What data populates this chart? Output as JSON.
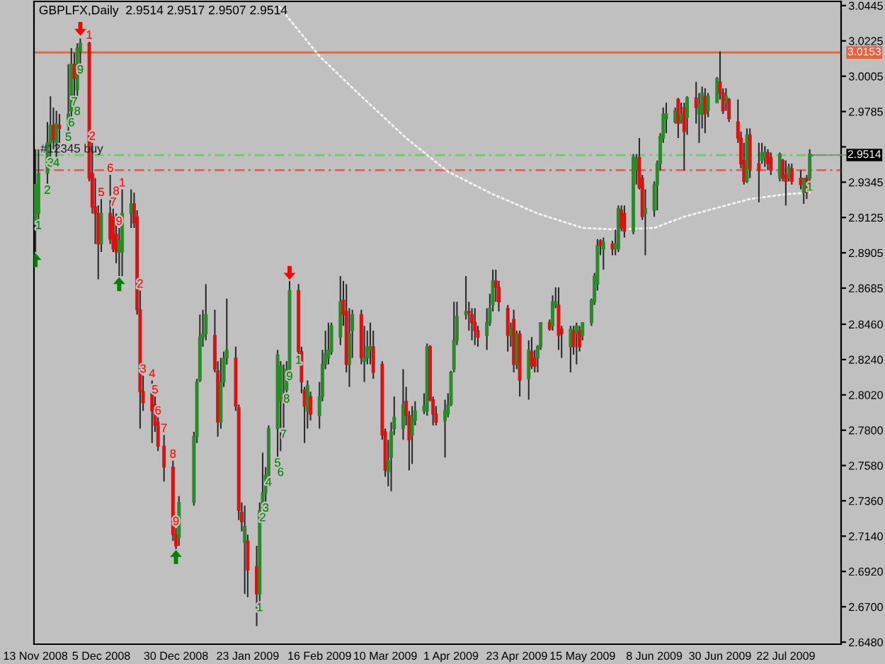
{
  "chart_data": {
    "type": "candlestick",
    "title": "GBPLFX,Daily  2.9514 2.9517 2.9507 2.9514",
    "x": [
      "2008-11-13",
      "2008-11-14",
      "2008-11-17",
      "2008-11-18",
      "2008-11-19",
      "2008-11-20",
      "2008-11-21",
      "2008-11-24",
      "2008-11-25",
      "2008-11-26",
      "2008-11-27",
      "2008-11-28",
      "2008-12-01",
      "2008-12-02",
      "2008-12-03",
      "2008-12-04",
      "2008-12-05",
      "2008-12-08",
      "2008-12-09",
      "2008-12-10",
      "2008-12-11",
      "2008-12-12",
      "2008-12-15",
      "2008-12-16",
      "2008-12-17",
      "2008-12-18",
      "2008-12-19",
      "2008-12-22",
      "2008-12-23",
      "2008-12-24",
      "2008-12-26",
      "2008-12-29",
      "2008-12-30",
      "2008-12-31",
      "2009-01-05",
      "2009-01-06",
      "2009-01-07",
      "2009-01-08",
      "2009-01-09",
      "2009-01-12",
      "2009-01-13",
      "2009-01-14",
      "2009-01-15",
      "2009-01-16",
      "2009-01-19",
      "2009-01-20",
      "2009-01-21",
      "2009-01-22",
      "2009-01-23",
      "2009-01-26",
      "2009-01-27",
      "2009-01-28",
      "2009-01-29",
      "2009-01-30",
      "2009-02-02",
      "2009-02-03",
      "2009-02-04",
      "2009-02-05",
      "2009-02-06",
      "2009-02-09",
      "2009-02-10",
      "2009-02-11",
      "2009-02-12",
      "2009-02-13",
      "2009-02-16",
      "2009-02-17",
      "2009-02-18",
      "2009-02-19",
      "2009-02-20",
      "2009-02-23",
      "2009-02-24",
      "2009-02-25",
      "2009-02-26",
      "2009-02-27",
      "2009-03-02",
      "2009-03-03",
      "2009-03-04",
      "2009-03-05",
      "2009-03-06",
      "2009-03-09",
      "2009-03-10",
      "2009-03-11",
      "2009-03-12",
      "2009-03-13",
      "2009-03-16",
      "2009-03-17",
      "2009-03-18",
      "2009-03-19",
      "2009-03-20",
      "2009-03-23",
      "2009-03-24",
      "2009-03-25",
      "2009-03-26",
      "2009-03-27",
      "2009-03-30",
      "2009-03-31",
      "2009-04-01",
      "2009-04-02",
      "2009-04-03",
      "2009-04-06",
      "2009-04-07",
      "2009-04-08",
      "2009-04-09",
      "2009-04-10",
      "2009-04-13",
      "2009-04-14",
      "2009-04-15",
      "2009-04-16",
      "2009-04-17",
      "2009-04-20",
      "2009-04-21",
      "2009-04-22",
      "2009-04-23",
      "2009-04-24",
      "2009-04-27",
      "2009-04-28",
      "2009-04-29",
      "2009-04-30",
      "2009-05-01",
      "2009-05-04",
      "2009-05-05",
      "2009-05-06",
      "2009-05-07",
      "2009-05-08",
      "2009-05-11",
      "2009-05-12",
      "2009-05-13",
      "2009-05-14",
      "2009-05-15",
      "2009-05-18",
      "2009-05-19",
      "2009-05-20",
      "2009-05-21",
      "2009-05-22",
      "2009-05-25",
      "2009-05-26",
      "2009-05-27",
      "2009-05-28",
      "2009-05-29",
      "2009-06-01",
      "2009-06-02",
      "2009-06-03",
      "2009-06-04",
      "2009-06-05",
      "2009-06-08",
      "2009-06-09",
      "2009-06-10",
      "2009-06-11",
      "2009-06-12",
      "2009-06-15",
      "2009-06-16",
      "2009-06-17",
      "2009-06-18",
      "2009-06-19",
      "2009-06-22",
      "2009-06-23",
      "2009-06-24",
      "2009-06-25",
      "2009-06-26",
      "2009-06-29",
      "2009-06-30",
      "2009-07-01",
      "2009-07-02",
      "2009-07-03",
      "2009-07-06",
      "2009-07-07",
      "2009-07-08",
      "2009-07-09",
      "2009-07-10",
      "2009-07-13",
      "2009-07-14",
      "2009-07-15",
      "2009-07-16",
      "2009-07-17",
      "2009-07-20",
      "2009-07-21",
      "2009-07-22",
      "2009-07-23",
      "2009-07-24",
      "2009-07-27",
      "2009-07-28",
      "2009-07-29",
      "2009-07-30",
      "2009-07-31"
    ],
    "ohlc": [
      [
        2.908,
        2.955,
        2.891,
        2.933
      ],
      [
        2.915,
        2.955,
        2.911,
        2.94
      ],
      [
        2.94,
        2.972,
        2.933,
        2.959
      ],
      [
        2.959,
        2.988,
        2.95,
        2.97
      ],
      [
        2.97,
        2.981,
        2.955,
        2.961
      ],
      [
        2.959,
        2.979,
        2.95,
        2.971
      ],
      [
        2.97,
        2.977,
        2.959,
        2.968
      ],
      [
        2.97,
        3.008,
        2.966,
        2.977
      ],
      [
        2.979,
        3.018,
        2.975,
        3.008
      ],
      [
        3.008,
        3.015,
        2.988,
        2.999
      ],
      [
        2.992,
        3.021,
        2.987,
        3.018
      ],
      [
        3.016,
        3.024,
        3.008,
        3.021
      ],
      [
        3.021,
        3.022,
        2.935,
        2.937
      ],
      [
        2.94,
        2.959,
        2.915,
        2.919
      ],
      [
        2.919,
        2.937,
        2.896,
        2.915
      ],
      [
        2.915,
        2.92,
        2.874,
        2.896
      ],
      [
        2.896,
        2.924,
        2.891,
        2.915
      ],
      [
        2.915,
        2.939,
        2.896,
        2.899
      ],
      [
        2.913,
        2.918,
        2.891,
        2.893
      ],
      [
        2.902,
        2.915,
        2.884,
        2.891
      ],
      [
        2.891,
        2.906,
        2.876,
        2.898
      ],
      [
        2.891,
        2.93,
        2.876,
        2.915
      ],
      [
        2.915,
        2.93,
        2.906,
        2.921
      ],
      [
        2.921,
        2.928,
        2.906,
        2.909
      ],
      [
        2.913,
        2.917,
        2.852,
        2.855
      ],
      [
        2.855,
        2.867,
        2.781,
        2.804
      ],
      [
        2.804,
        2.814,
        2.792,
        2.797
      ],
      [
        2.803,
        2.811,
        2.772,
        2.792
      ],
      [
        2.796,
        2.801,
        2.779,
        2.783
      ],
      [
        2.785,
        2.788,
        2.767,
        2.77
      ],
      [
        2.77,
        2.777,
        2.748,
        2.757
      ],
      [
        2.757,
        2.761,
        2.711,
        2.715
      ],
      [
        2.715,
        2.719,
        2.706,
        2.708
      ],
      [
        2.713,
        2.739,
        2.708,
        2.735
      ],
      [
        2.735,
        2.779,
        2.733,
        2.776
      ],
      [
        2.776,
        2.812,
        2.772,
        2.81
      ],
      [
        2.811,
        2.852,
        2.81,
        2.838
      ],
      [
        2.838,
        2.855,
        2.832,
        2.84
      ],
      [
        2.84,
        2.871,
        2.836,
        2.852
      ],
      [
        2.839,
        2.855,
        2.816,
        2.818
      ],
      [
        2.817,
        2.823,
        2.776,
        2.785
      ],
      [
        2.785,
        2.825,
        2.781,
        2.81
      ],
      [
        2.81,
        2.829,
        2.807,
        2.825
      ],
      [
        2.825,
        2.862,
        2.821,
        2.83
      ],
      [
        2.825,
        2.832,
        2.792,
        2.795
      ],
      [
        2.794,
        2.796,
        2.724,
        2.73
      ],
      [
        2.729,
        2.735,
        2.717,
        2.723
      ],
      [
        2.71,
        2.733,
        2.678,
        2.72
      ],
      [
        2.711,
        2.715,
        2.676,
        2.693
      ],
      [
        2.695,
        2.708,
        2.658,
        2.678
      ],
      [
        2.678,
        2.735,
        2.673,
        2.73
      ],
      [
        2.73,
        2.766,
        2.729,
        2.741
      ],
      [
        2.741,
        2.757,
        2.735,
        2.752
      ],
      [
        2.752,
        2.783,
        2.751,
        2.781
      ],
      [
        2.781,
        2.83,
        2.763,
        2.827
      ],
      [
        2.798,
        2.823,
        2.767,
        2.82
      ],
      [
        2.801,
        2.821,
        2.781,
        2.798
      ],
      [
        2.805,
        2.823,
        2.803,
        2.818
      ],
      [
        2.818,
        2.873,
        2.817,
        2.867
      ],
      [
        2.867,
        2.871,
        2.827,
        2.829
      ],
      [
        2.829,
        2.832,
        2.803,
        2.81
      ],
      [
        2.805,
        2.807,
        2.772,
        2.795
      ],
      [
        2.792,
        2.811,
        2.781,
        2.808
      ],
      [
        2.801,
        2.804,
        2.786,
        2.79
      ],
      [
        2.789,
        2.81,
        2.781,
        2.801
      ],
      [
        2.801,
        2.83,
        2.798,
        2.821
      ],
      [
        2.821,
        2.842,
        2.818,
        2.828
      ],
      [
        2.825,
        2.847,
        2.821,
        2.83
      ],
      [
        2.829,
        2.847,
        2.827,
        2.845
      ],
      [
        2.838,
        2.876,
        2.833,
        2.86
      ],
      [
        2.861,
        2.873,
        2.845,
        2.852
      ],
      [
        2.854,
        2.871,
        2.816,
        2.821
      ],
      [
        2.821,
        2.856,
        2.807,
        2.84
      ],
      [
        2.842,
        2.855,
        2.825,
        2.852
      ],
      [
        2.852,
        2.855,
        2.821,
        2.825
      ],
      [
        2.823,
        2.845,
        2.81,
        2.825
      ],
      [
        2.825,
        2.842,
        2.821,
        2.832
      ],
      [
        2.83,
        2.847,
        2.821,
        2.832
      ],
      [
        2.832,
        2.842,
        2.812,
        2.816
      ],
      [
        2.821,
        2.823,
        2.774,
        2.777
      ],
      [
        2.779,
        2.781,
        2.751,
        2.755
      ],
      [
        2.754,
        2.774,
        2.745,
        2.761
      ],
      [
        2.763,
        2.785,
        2.742,
        2.779
      ],
      [
        2.781,
        2.801,
        2.777,
        2.788
      ],
      [
        2.781,
        2.818,
        2.774,
        2.796
      ],
      [
        2.798,
        2.807,
        2.783,
        2.789
      ],
      [
        2.789,
        2.792,
        2.755,
        2.774
      ],
      [
        2.777,
        2.795,
        2.759,
        2.788
      ],
      [
        2.786,
        2.798,
        2.783,
        2.792
      ],
      [
        2.792,
        2.803,
        2.79,
        2.795
      ],
      [
        2.792,
        2.834,
        2.789,
        2.832
      ],
      [
        2.832,
        2.833,
        2.798,
        2.799
      ],
      [
        2.799,
        2.801,
        2.783,
        2.79
      ],
      [
        2.79,
        2.795,
        2.783,
        2.785
      ],
      [
        2.786,
        2.799,
        2.763,
        2.792
      ],
      [
        2.79,
        2.803,
        2.788,
        2.796
      ],
      [
        2.796,
        2.817,
        2.795,
        2.816
      ],
      [
        2.818,
        2.86,
        2.816,
        2.836
      ],
      [
        2.836,
        2.86,
        2.833,
        2.851
      ],
      [
        2.852,
        2.876,
        2.849,
        2.854
      ],
      [
        2.854,
        2.86,
        2.842,
        2.853
      ],
      [
        2.852,
        2.856,
        2.836,
        2.847
      ],
      [
        2.847,
        2.856,
        2.833,
        2.842
      ],
      [
        2.842,
        2.845,
        2.832,
        2.838
      ],
      [
        2.839,
        2.856,
        2.83,
        2.847
      ],
      [
        2.847,
        2.865,
        2.845,
        2.856
      ],
      [
        2.858,
        2.88,
        2.854,
        2.873
      ],
      [
        2.873,
        2.88,
        2.86,
        2.869
      ],
      [
        2.869,
        2.873,
        2.854,
        2.86
      ],
      [
        2.856,
        2.858,
        2.829,
        2.839
      ],
      [
        2.839,
        2.847,
        2.832,
        2.843
      ],
      [
        2.849,
        2.855,
        2.816,
        2.821
      ],
      [
        2.821,
        2.842,
        2.818,
        2.84
      ],
      [
        2.84,
        2.842,
        2.801,
        2.811
      ],
      [
        2.812,
        2.836,
        2.799,
        2.83
      ],
      [
        2.829,
        2.838,
        2.818,
        2.82
      ],
      [
        2.825,
        2.83,
        2.816,
        2.82
      ],
      [
        2.825,
        2.833,
        2.816,
        2.832
      ],
      [
        2.832,
        2.847,
        2.83,
        2.847
      ],
      [
        2.847,
        2.849,
        2.842,
        2.843
      ],
      [
        2.845,
        2.864,
        2.842,
        2.86
      ],
      [
        2.858,
        2.869,
        2.856,
        2.86
      ],
      [
        2.858,
        2.869,
        2.83,
        2.839
      ],
      [
        2.843,
        2.845,
        2.825,
        2.84
      ],
      [
        2.832,
        2.845,
        2.816,
        2.843
      ],
      [
        2.842,
        2.845,
        2.827,
        2.832
      ],
      [
        2.84,
        2.847,
        2.821,
        2.845
      ],
      [
        2.842,
        2.845,
        2.829,
        2.832
      ],
      [
        2.839,
        2.847,
        2.836,
        2.847
      ],
      [
        2.847,
        2.862,
        2.845,
        2.861
      ],
      [
        2.86,
        2.878,
        2.858,
        2.876
      ],
      [
        2.871,
        2.899,
        2.867,
        2.895
      ],
      [
        2.898,
        2.899,
        2.889,
        2.895
      ],
      [
        2.893,
        2.9,
        2.88,
        2.897
      ],
      [
        2.896,
        2.898,
        2.889,
        2.893
      ],
      [
        2.893,
        2.905,
        2.889,
        2.896
      ],
      [
        2.893,
        2.92,
        2.891,
        2.918
      ],
      [
        2.917,
        2.92,
        2.904,
        2.906
      ],
      [
        2.915,
        2.92,
        2.9,
        2.904
      ],
      [
        2.904,
        2.952,
        2.902,
        2.95
      ],
      [
        2.942,
        2.952,
        2.933,
        2.949
      ],
      [
        2.95,
        2.962,
        2.93,
        2.931
      ],
      [
        2.937,
        2.939,
        2.911,
        2.913
      ],
      [
        2.915,
        2.93,
        2.889,
        2.918
      ],
      [
        2.917,
        2.935,
        2.913,
        2.933
      ],
      [
        2.933,
        2.948,
        2.917,
        2.946
      ],
      [
        2.946,
        2.965,
        2.942,
        2.963
      ],
      [
        2.962,
        2.981,
        2.959,
        2.977
      ],
      [
        2.974,
        2.984,
        2.965,
        2.977
      ],
      [
        2.972,
        2.981,
        2.971,
        2.979
      ],
      [
        2.986,
        2.987,
        2.962,
        2.971
      ],
      [
        2.972,
        2.984,
        2.971,
        2.977
      ],
      [
        2.981,
        2.984,
        2.942,
        2.966
      ],
      [
        2.975,
        2.988,
        2.964,
        2.987
      ],
      [
        2.987,
        2.997,
        2.971,
        2.981
      ],
      [
        2.977,
        2.99,
        2.959,
        2.983
      ],
      [
        2.977,
        2.994,
        2.968,
        2.99
      ],
      [
        2.988,
        2.993,
        2.965,
        2.977
      ],
      [
        2.979,
        2.99,
        2.975,
        2.988
      ],
      [
        2.984,
        3.0,
        2.984,
        2.999
      ],
      [
        2.997,
        3.016,
        2.986,
        2.99
      ],
      [
        2.99,
        2.993,
        2.977,
        2.979
      ],
      [
        2.984,
        2.993,
        2.979,
        2.988
      ],
      [
        2.986,
        2.987,
        2.972,
        2.974
      ],
      [
        2.972,
        2.986,
        2.959,
        2.962
      ],
      [
        2.962,
        2.966,
        2.943,
        2.946
      ],
      [
        2.948,
        2.959,
        2.933,
        2.935
      ],
      [
        2.935,
        2.968,
        2.934,
        2.964
      ],
      [
        2.964,
        2.968,
        2.937,
        2.943
      ],
      [
        2.946,
        2.959,
        2.922,
        2.942
      ],
      [
        2.948,
        2.959,
        2.946,
        2.953
      ],
      [
        2.95,
        2.957,
        2.944,
        2.953
      ],
      [
        2.953,
        2.955,
        2.942,
        2.946
      ],
      [
        2.95,
        2.953,
        2.939,
        2.942
      ],
      [
        2.937,
        2.953,
        2.935,
        2.952
      ],
      [
        2.948,
        2.949,
        2.935,
        2.937
      ],
      [
        2.939,
        2.948,
        2.92,
        2.935
      ],
      [
        2.937,
        2.946,
        2.935,
        2.944
      ],
      [
        2.943,
        2.946,
        2.933,
        2.935
      ],
      [
        2.937,
        2.942,
        2.93,
        2.933
      ],
      [
        2.928,
        2.937,
        2.921,
        2.937
      ],
      [
        2.937,
        2.939,
        2.924,
        2.928
      ],
      [
        2.937,
        2.955,
        2.935,
        2.952
      ],
      [
        2.9514,
        2.9517,
        2.9507,
        2.9514
      ]
    ],
    "colors": [
      "#2a8a2a",
      "#2a8a2a",
      "#2a8a2a",
      "#2a8a2a",
      "#e01010",
      "#2a8a2a",
      "#e01010",
      "#2a8a2a",
      "#2a8a2a",
      "#e01010",
      "#2a8a2a",
      "#2a8a2a",
      "#e01010",
      "#e01010",
      "#e01010",
      "#e01010",
      "#2a8a2a",
      "#e01010",
      "#e01010",
      "#e01010",
      "#2a8a2a",
      "#2a8a2a",
      "#2a8a2a",
      "#e01010",
      "#e01010",
      "#e01010",
      "#e01010",
      "#e01010",
      "#e01010",
      "#e01010",
      "#e01010",
      "#e01010",
      "#e01010",
      "#2a8a2a",
      "#2a8a2a",
      "#2a8a2a",
      "#2a8a2a",
      "#2a8a2a",
      "#2a8a2a",
      "#e01010",
      "#e01010",
      "#2a8a2a",
      "#2a8a2a",
      "#2a8a2a",
      "#e01010",
      "#e01010",
      "#e01010",
      "#2a8a2a",
      "#e01010",
      "#e01010",
      "#2a8a2a",
      "#2a8a2a",
      "#2a8a2a",
      "#2a8a2a",
      "#2a8a2a",
      "#2a8a2a",
      "#e01010",
      "#2a8a2a",
      "#2a8a2a",
      "#e01010",
      "#e01010",
      "#e01010",
      "#2a8a2a",
      "#e01010",
      "#2a8a2a",
      "#2a8a2a",
      "#2a8a2a",
      "#2a8a2a",
      "#2a8a2a",
      "#2a8a2a",
      "#e01010",
      "#e01010",
      "#2a8a2a",
      "#2a8a2a",
      "#e01010",
      "#2a8a2a",
      "#2a8a2a",
      "#2a8a2a",
      "#e01010",
      "#e01010",
      "#e01010",
      "#2a8a2a",
      "#2a8a2a",
      "#2a8a2a",
      "#2a8a2a",
      "#e01010",
      "#e01010",
      "#2a8a2a",
      "#2a8a2a",
      "#2a8a2a",
      "#2a8a2a",
      "#e01010",
      "#e01010",
      "#e01010",
      "#2a8a2a",
      "#2a8a2a",
      "#2a8a2a",
      "#2a8a2a",
      "#2a8a2a",
      "#2a8a2a",
      "#e01010",
      "#e01010",
      "#e01010",
      "#e01010",
      "#2a8a2a",
      "#2a8a2a",
      "#2a8a2a",
      "#e01010",
      "#e01010",
      "#e01010",
      "#2a8a2a",
      "#e01010",
      "#2a8a2a",
      "#e01010",
      "#2a8a2a",
      "#e01010",
      "#e01010",
      "#2a8a2a",
      "#2a8a2a",
      "#e01010",
      "#2a8a2a",
      "#2a8a2a",
      "#e01010",
      "#e01010",
      "#2a8a2a",
      "#e01010",
      "#2a8a2a",
      "#e01010",
      "#2a8a2a",
      "#2a8a2a",
      "#2a8a2a",
      "#2a8a2a",
      "#e01010",
      "#2a8a2a",
      "#e01010",
      "#2a8a2a",
      "#2a8a2a",
      "#e01010",
      "#e01010",
      "#2a8a2a",
      "#2a8a2a",
      "#e01010",
      "#e01010",
      "#2a8a2a",
      "#2a8a2a",
      "#2a8a2a",
      "#2a8a2a",
      "#2a8a2a",
      "#2a8a2a",
      "#2a8a2a",
      "#e01010",
      "#2a8a2a",
      "#e01010",
      "#2a8a2a",
      "#e01010",
      "#2a8a2a",
      "#2a8a2a",
      "#e01010",
      "#2a8a2a",
      "#2a8a2a",
      "#e01010",
      "#e01010",
      "#2a8a2a",
      "#e01010",
      "#e01010",
      "#e01010",
      "#e01010",
      "#2a8a2a",
      "#e01010",
      "#e01010",
      "#2a8a2a",
      "#2a8a2a",
      "#e01010",
      "#e01010",
      "#2a8a2a",
      "#e01010",
      "#e01010",
      "#2a8a2a",
      "#e01010",
      "#e01010",
      "#2a8a2a",
      "#e01010",
      "#2a8a2a",
      "#2a8a2a"
    ],
    "xlim": [
      "2008-11-12T12:00",
      "2009-08-09T12:00"
    ],
    "xticks": [
      {
        "value": "2008-11-13",
        "label": "13 Nov 2008"
      },
      {
        "value": "2008-12-05",
        "label": "5 Dec 2008"
      },
      {
        "value": "2008-12-30",
        "label": "30 Dec 2008"
      },
      {
        "value": "2009-01-23",
        "label": "23 Jan 2009"
      },
      {
        "value": "2009-02-16",
        "label": "16 Feb 2009"
      },
      {
        "value": "2009-03-10",
        "label": "10 Mar 2009"
      },
      {
        "value": "2009-04-01",
        "label": "1 Apr 2009"
      },
      {
        "value": "2009-04-23",
        "label": "23 Apr 2009"
      },
      {
        "value": "2009-05-15",
        "label": "15 May 2009"
      },
      {
        "value": "2009-06-08",
        "label": "8 Jun 2009"
      },
      {
        "value": "2009-06-30",
        "label": "30 Jun 2009"
      },
      {
        "value": "2009-07-22",
        "label": "22 Jul 2009"
      }
    ],
    "ylim": [
      2.6467,
      3.0471
    ],
    "yticks": [
      3.0445,
      3.0225,
      3.0005,
      2.9785,
      {
        "value": 2.9565,
        "label": null
      },
      2.9345,
      2.9125,
      2.8905,
      2.8685,
      {
        "value": 2.846,
        "label": "2.8460"
      },
      {
        "value": 2.824,
        "label": "2.8240"
      },
      {
        "value": 2.802,
        "label": "2.8020"
      },
      {
        "value": 2.78,
        "label": "2.7800"
      },
      {
        "value": 2.758,
        "label": "2.7580"
      },
      {
        "value": 2.736,
        "label": "2.7360"
      },
      {
        "value": 2.714,
        "label": "2.7140"
      },
      {
        "value": 2.692,
        "label": "2.6920"
      },
      {
        "value": 2.67,
        "label": "2.6700"
      },
      {
        "value": 2.648,
        "label": "2.6480"
      }
    ],
    "grid": false,
    "ref_lines": [
      {
        "axis": "y",
        "value": 3.0153,
        "label": "3.0153",
        "color": "#e8603c",
        "line_style": "solid"
      },
      {
        "axis": "y",
        "value": 2.9514,
        "label": "#12345 buy",
        "color": "#6ccc6c",
        "line_style": "dashdot"
      },
      {
        "axis": "y",
        "value": 2.942,
        "color": "#e06060",
        "line_style": "dashdot"
      }
    ],
    "annotations": [
      {
        "text": "2.9514",
        "x": "2009-07-31",
        "y": 2.9514
      },
      {
        "text": "1",
        "x": "2008-11-14",
        "y": 2.911
      },
      {
        "text": "2",
        "x": "2008-11-17",
        "y": 2.933
      },
      {
        "text": "3",
        "x": "2008-11-18",
        "y": 2.95
      },
      {
        "text": "4",
        "x": "2008-11-20",
        "y": 2.95
      },
      {
        "text": "5",
        "x": "2008-11-24",
        "y": 2.966
      },
      {
        "text": "6",
        "x": "2008-11-25",
        "y": 2.975
      },
      {
        "text": "7",
        "x": "2008-11-26",
        "y": 2.988
      },
      {
        "text": "8",
        "x": "2008-11-27",
        "y": 2.987
      },
      {
        "text": "9",
        "x": "2008-11-28",
        "y": 3.008
      },
      {
        "text": "1",
        "x": "2008-12-01",
        "y": 3.022
      },
      {
        "text": "2",
        "x": "2008-12-02",
        "y": 2.959
      },
      {
        "text": "5",
        "x": "2008-12-05",
        "y": 2.924
      },
      {
        "text": "6",
        "x": "2008-12-08",
        "y": 2.939
      },
      {
        "text": "7",
        "x": "2008-12-09",
        "y": 2.918
      },
      {
        "text": "8",
        "x": "2008-12-10",
        "y": 2.915
      },
      {
        "text": "9",
        "x": "2008-12-11",
        "y": 2.906
      },
      {
        "text": "1",
        "x": "2008-12-12",
        "y": 2.93
      },
      {
        "text": "2",
        "x": "2008-12-18",
        "y": 2.867
      },
      {
        "text": "3",
        "x": "2008-12-19",
        "y": 2.814
      },
      {
        "text": "4",
        "x": "2008-12-22",
        "y": 2.811
      },
      {
        "text": "5",
        "x": "2008-12-23",
        "y": 2.801
      },
      {
        "text": "6",
        "x": "2008-12-24",
        "y": 2.788
      },
      {
        "text": "7",
        "x": "2008-12-26",
        "y": 2.777
      },
      {
        "text": "8",
        "x": "2008-12-29",
        "y": 2.761
      },
      {
        "text": "9",
        "x": "2008-12-30",
        "y": 2.719
      },
      {
        "text": "1",
        "x": "2009-01-27",
        "y": 2.673
      },
      {
        "text": "2",
        "x": "2009-01-28",
        "y": 2.729
      },
      {
        "text": "3",
        "x": "2009-01-29",
        "y": 2.735
      },
      {
        "text": "4",
        "x": "2009-01-30",
        "y": 2.751
      },
      {
        "text": "5",
        "x": "2009-02-02",
        "y": 2.763
      },
      {
        "text": "6",
        "x": "2009-02-03",
        "y": 2.767
      },
      {
        "text": "7",
        "x": "2009-02-04",
        "y": 2.781
      },
      {
        "text": "8",
        "x": "2009-02-05",
        "y": 2.803
      },
      {
        "text": "9",
        "x": "2009-02-06",
        "y": 2.817
      },
      {
        "text": "1",
        "x": "2009-02-09",
        "y": 2.827
      },
      {
        "text": "1",
        "x": "2009-07-30",
        "y": 2.935
      }
    ],
    "series": [
      {
        "type": "line",
        "x": [
          "2009-02-02",
          "2009-02-16",
          "2009-03-02",
          "2009-03-17",
          "2009-03-31",
          "2009-04-15",
          "2009-04-30",
          "2009-05-15",
          "2009-05-27",
          "2009-06-08",
          "2009-06-18",
          "2009-06-30",
          "2009-07-10",
          "2009-07-22",
          "2009-07-30"
        ],
        "values": [
          3.045,
          3.013,
          2.988,
          2.962,
          2.941,
          2.927,
          2.915,
          2.906,
          2.905,
          2.906,
          2.913,
          2.919,
          2.924,
          2.927,
          2.928
        ],
        "color": "#f4f4f4",
        "line_style": "dotted"
      },
      {
        "type": "scatter",
        "x": [
          "2008-11-28",
          "2009-02-06"
        ],
        "values": [
          3.03,
          2.878
        ],
        "color": "#ff0000"
      },
      {
        "type": "scatter",
        "x": [
          "2008-11-13",
          "2008-12-11",
          "2008-12-30"
        ],
        "values": [
          2.886,
          2.871,
          2.701
        ],
        "color": "#008000"
      }
    ]
  }
}
